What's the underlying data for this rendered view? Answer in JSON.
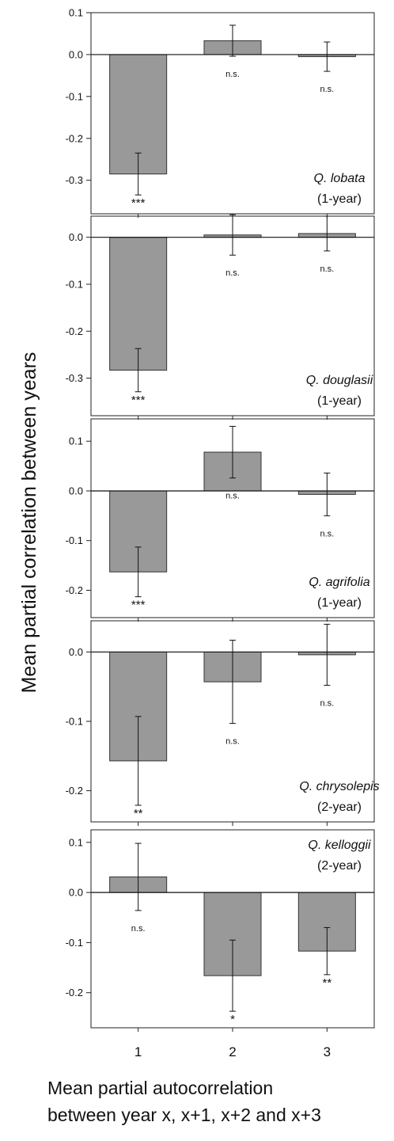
{
  "chart_data": {
    "type": "bar",
    "layout": "vertical-stack",
    "ylabel": "Mean partial correlation between years",
    "xlabel_lines": [
      "Mean partial autocorrelation",
      "between year x, x+1, x+2 and x+3"
    ],
    "categories": [
      "1",
      "2",
      "3"
    ],
    "bar_color": "#999999",
    "panels": [
      {
        "species": "Q. lobata",
        "note": "(1-year)",
        "label_position": "bottom-right",
        "ylim": [
          -0.38,
          0.1
        ],
        "yticks": [
          0.1,
          0.0,
          -0.1,
          -0.2,
          -0.3
        ],
        "ytick_labels": [
          "0.1",
          "0.0",
          "-0.1",
          "-0.2",
          "-0.3"
        ],
        "values": [
          -0.285,
          0.033,
          -0.005
        ],
        "errors": [
          0.05,
          0.037,
          0.035
        ],
        "significance": [
          "***",
          "n.s.",
          "n.s."
        ]
      },
      {
        "species": "Q. douglasii",
        "note": "(1-year)",
        "label_position": "bottom-right",
        "ylim": [
          -0.38,
          0.045
        ],
        "yticks": [
          0.0,
          -0.1,
          -0.2,
          -0.3
        ],
        "ytick_labels": [
          "0.0",
          "-0.1",
          "-0.2",
          "-0.3"
        ],
        "values": [
          -0.283,
          0.005,
          0.008
        ],
        "errors": [
          0.046,
          0.043,
          0.037
        ],
        "significance": [
          "***",
          "n.s.",
          "n.s."
        ]
      },
      {
        "species": "Q. agrifolia",
        "note": "(1-year)",
        "label_position": "bottom-right",
        "ylim": [
          -0.255,
          0.145
        ],
        "yticks": [
          0.1,
          0.0,
          -0.1,
          -0.2
        ],
        "ytick_labels": [
          "0.1",
          "0.0",
          "-0.1",
          "-0.2"
        ],
        "values": [
          -0.163,
          0.078,
          -0.007
        ],
        "errors": [
          0.05,
          0.052,
          0.043
        ],
        "significance": [
          "***",
          "n.s.",
          "n.s."
        ]
      },
      {
        "species": "Q. chrysolepis",
        "note": "(2-year)",
        "label_position": "bottom-right",
        "ylim": [
          -0.245,
          0.045
        ],
        "yticks": [
          0.0,
          -0.1,
          -0.2
        ],
        "ytick_labels": [
          "0.0",
          "-0.1",
          "-0.2"
        ],
        "values": [
          -0.157,
          -0.043,
          -0.004
        ],
        "errors": [
          0.064,
          0.06,
          0.044
        ],
        "significance": [
          "**",
          "n.s.",
          "n.s."
        ]
      },
      {
        "species": "Q. kelloggii",
        "note": "(2-year)",
        "label_position": "top-right",
        "ylim": [
          -0.27,
          0.125
        ],
        "yticks": [
          0.1,
          0.0,
          -0.1,
          -0.2
        ],
        "ytick_labels": [
          "0.1",
          "0.0",
          "-0.1",
          "-0.2"
        ],
        "values": [
          0.031,
          -0.166,
          -0.117
        ],
        "errors": [
          0.067,
          0.071,
          0.047
        ],
        "significance": [
          "n.s.",
          "*",
          "**"
        ]
      }
    ]
  }
}
